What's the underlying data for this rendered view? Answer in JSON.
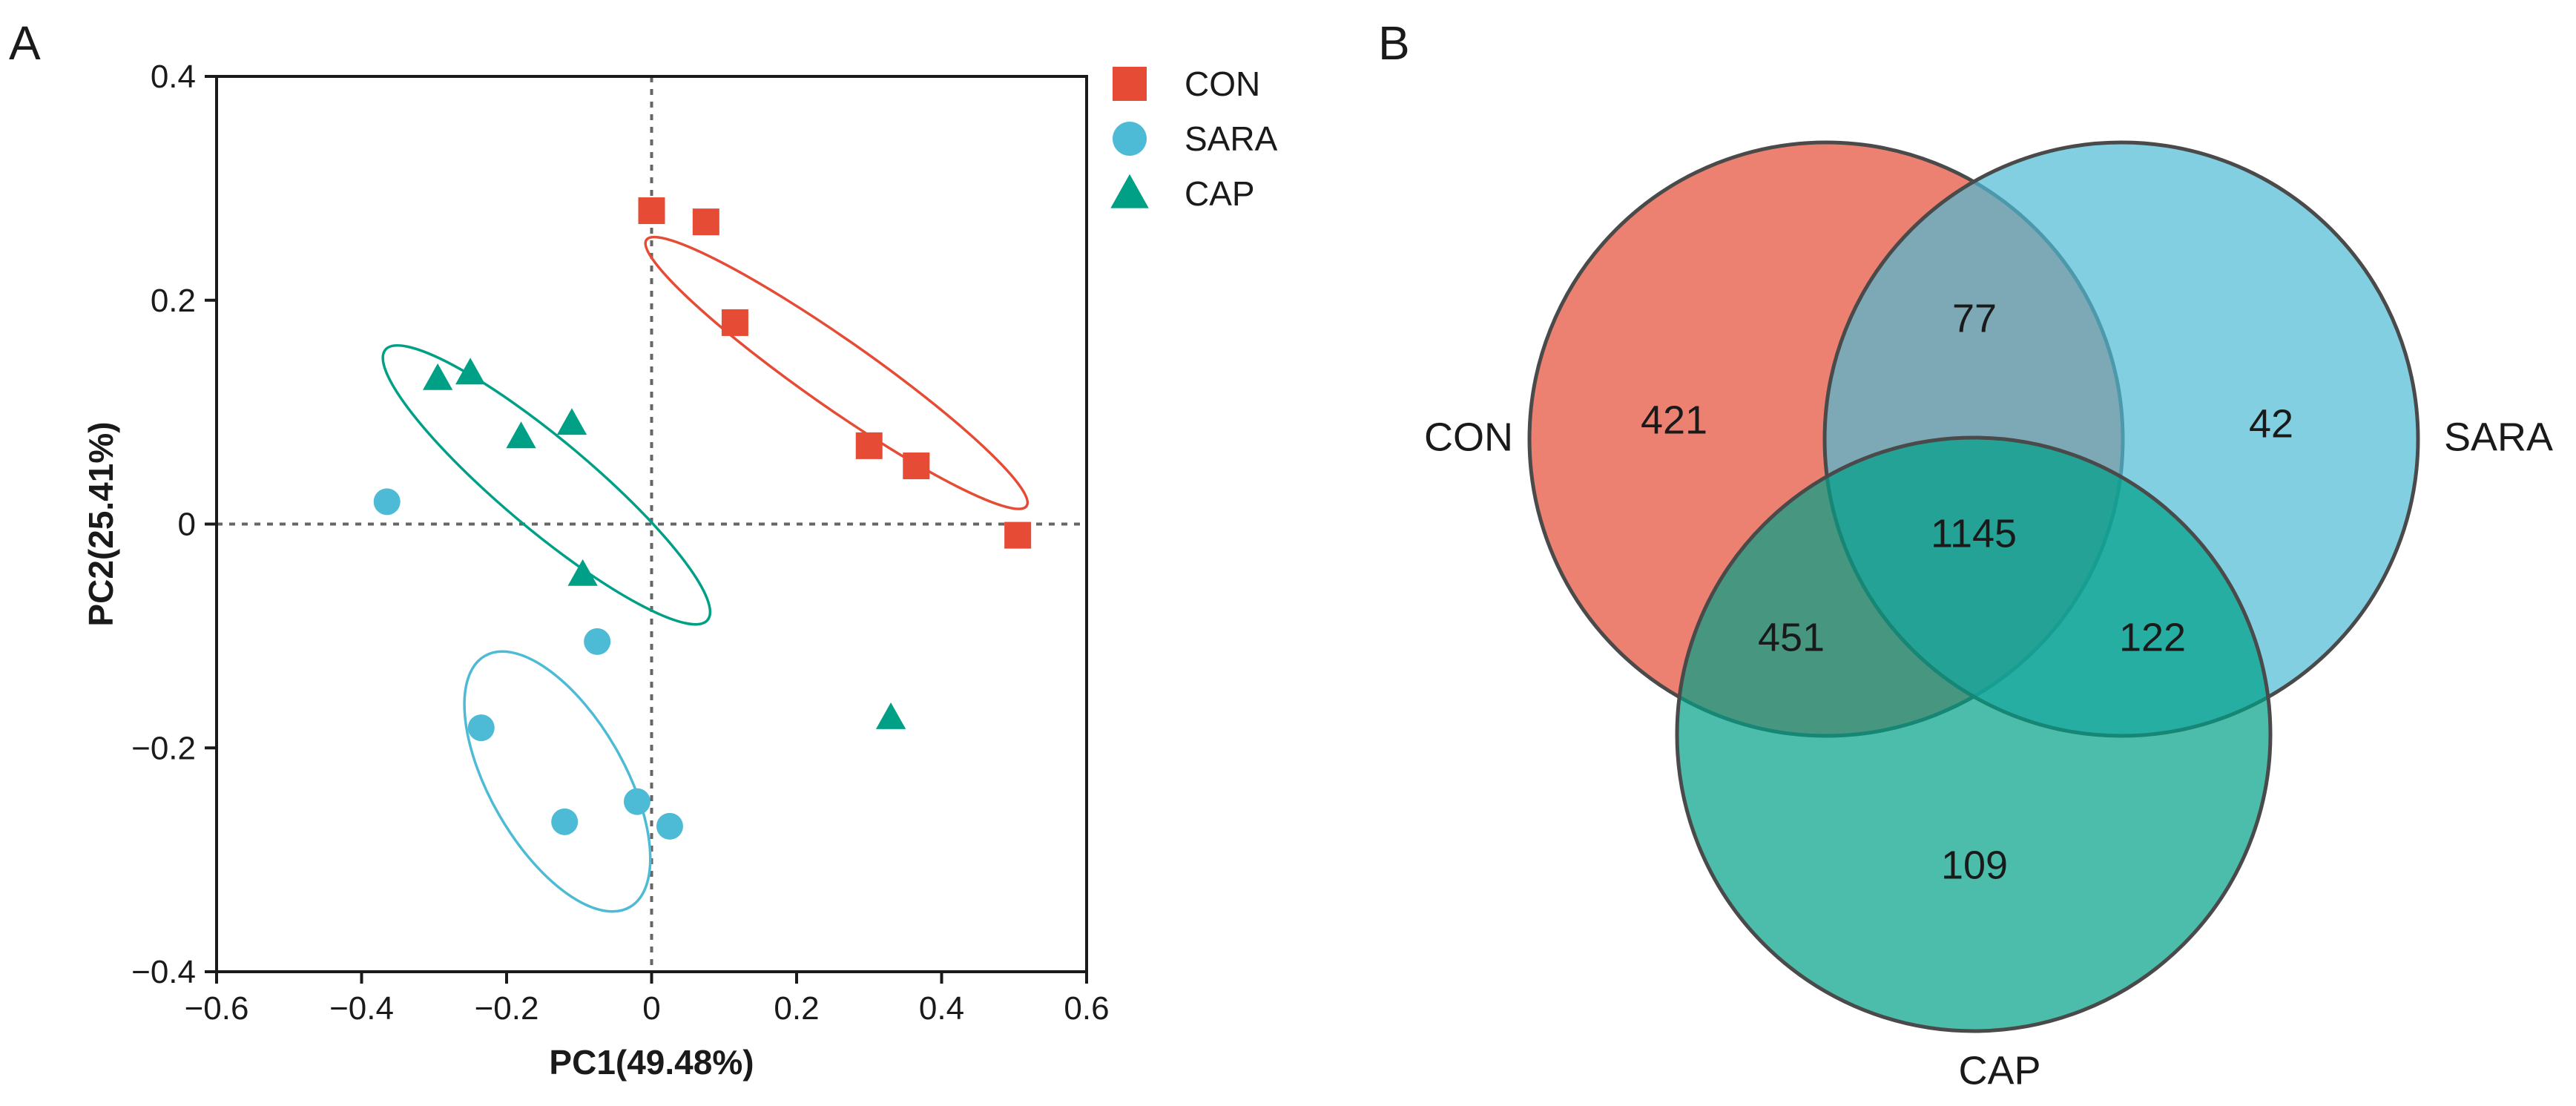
{
  "panels": {
    "a_label": "A",
    "b_label": "B"
  },
  "chart_data": [
    {
      "type": "scatter",
      "title": "",
      "xlabel": "PC1(49.48%)",
      "ylabel": "PC2(25.41%)",
      "xlim": [
        -0.6,
        0.6
      ],
      "ylim": [
        -0.4,
        0.4
      ],
      "x_ticks": [
        "−0.6",
        "−0.4",
        "−0.2",
        "0",
        "0.2",
        "0.4",
        "0.6"
      ],
      "y_ticks": [
        "−0.4",
        "−0.2",
        "0",
        "0.2",
        "0.4"
      ],
      "x_tick_values": [
        -0.6,
        -0.4,
        -0.2,
        0,
        0.2,
        0.4,
        0.6
      ],
      "y_tick_values": [
        -0.4,
        -0.2,
        0,
        0.2,
        0.4
      ],
      "reference_lines": {
        "x": 0,
        "y": 0
      },
      "legend_position": "top-right outside",
      "series": [
        {
          "name": "CON",
          "color": "#E64B35",
          "marker": "square",
          "x": [
            0.0,
            0.075,
            0.115,
            0.3,
            0.365,
            0.505
          ],
          "y": [
            0.28,
            0.27,
            0.18,
            0.07,
            0.052,
            -0.01
          ],
          "ellipse": {
            "center": [
              0.255,
              0.135
            ],
            "semi_axes": [
              0.32,
              0.03
            ],
            "angle_deg": -35
          }
        },
        {
          "name": "SARA",
          "color": "#4DBBD5",
          "marker": "circle",
          "x": [
            -0.365,
            -0.075,
            -0.235,
            -0.12,
            -0.02,
            0.025
          ],
          "y": [
            0.02,
            -0.105,
            -0.182,
            -0.266,
            -0.248,
            -0.27
          ],
          "ellipse": {
            "center": [
              -0.13,
              -0.23
            ],
            "semi_axes": [
              0.2,
              0.06
            ],
            "angle_deg": -60
          }
        },
        {
          "name": "CAP",
          "color": "#00A087",
          "marker": "triangle",
          "x": [
            -0.295,
            -0.25,
            -0.18,
            -0.11,
            -0.095,
            0.33
          ],
          "y": [
            0.13,
            0.135,
            0.078,
            0.09,
            -0.045,
            -0.173
          ],
          "ellipse": {
            "center": [
              -0.145,
              0.035
            ],
            "semi_axes": [
              0.29,
              0.04
            ],
            "angle_deg": -40
          }
        }
      ]
    },
    {
      "type": "venn",
      "sets": [
        {
          "name": "CON",
          "color": "#E64B35"
        },
        {
          "name": "SARA",
          "color": "#4DBBD5"
        },
        {
          "name": "CAP",
          "color": "#00A087"
        }
      ],
      "regions": [
        {
          "sets": [
            "CON"
          ],
          "value": 421
        },
        {
          "sets": [
            "SARA"
          ],
          "value": 42
        },
        {
          "sets": [
            "CAP"
          ],
          "value": 109
        },
        {
          "sets": [
            "CON",
            "SARA"
          ],
          "value": 77
        },
        {
          "sets": [
            "CON",
            "CAP"
          ],
          "value": 451
        },
        {
          "sets": [
            "SARA",
            "CAP"
          ],
          "value": 122
        },
        {
          "sets": [
            "CON",
            "SARA",
            "CAP"
          ],
          "value": 1145
        }
      ]
    }
  ]
}
